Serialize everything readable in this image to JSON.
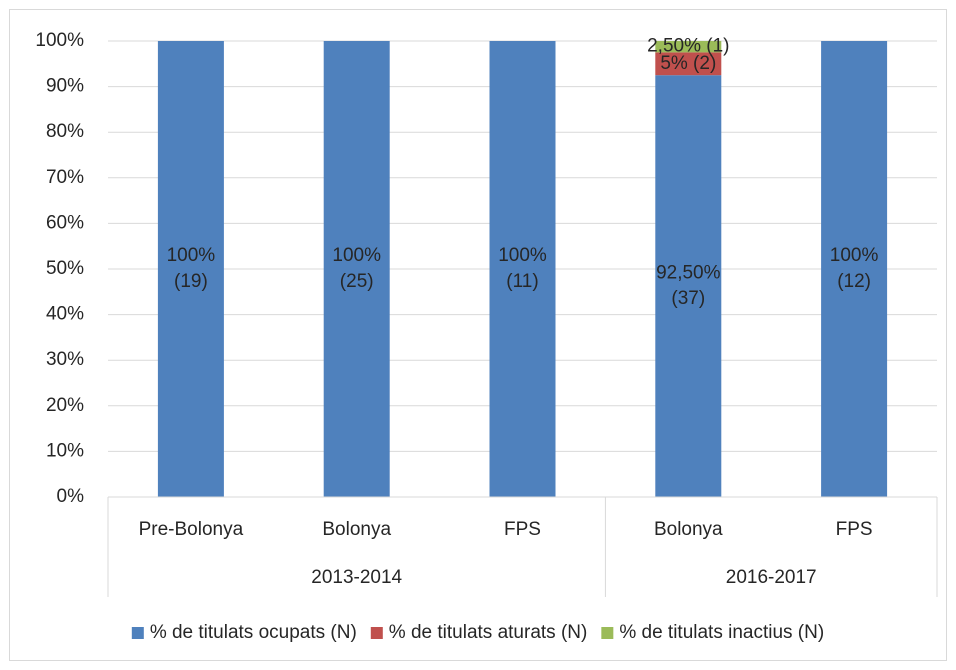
{
  "chart_data": {
    "type": "stacked_bar",
    "category_groups": [
      {
        "name": "2013-2014",
        "categories": [
          "Pre-Bolonya",
          "Bolonya",
          "FPS"
        ]
      },
      {
        "name": "2016-2017",
        "categories": [
          "Bolonya",
          "FPS"
        ]
      }
    ],
    "series": [
      {
        "name": "% de titulats ocupats (N)",
        "color": "#4f81bd",
        "values": [
          100,
          100,
          100,
          92.5,
          100
        ],
        "value_labels": [
          "100%\n(19)",
          "100%\n(25)",
          "100%\n(11)",
          "92,50%\n(37)",
          "100%\n(12)"
        ]
      },
      {
        "name": "% de titulats aturats (N)",
        "color": "#c0504d",
        "values": [
          0,
          0,
          0,
          5,
          0
        ],
        "value_labels": [
          null,
          null,
          null,
          "5% (2)",
          null
        ]
      },
      {
        "name": "% de titulats inactius (N)",
        "color": "#9bbb59",
        "values": [
          0,
          0,
          0,
          2.5,
          0
        ],
        "value_labels": [
          null,
          null,
          null,
          "2,50% (1)",
          null
        ]
      }
    ],
    "ylim": [
      0,
      100
    ],
    "yticks": [
      {
        "value": 0,
        "label": "0%"
      },
      {
        "value": 10,
        "label": "10%"
      },
      {
        "value": 20,
        "label": "20%"
      },
      {
        "value": 30,
        "label": "30%"
      },
      {
        "value": 40,
        "label": "40%"
      },
      {
        "value": 50,
        "label": "50%"
      },
      {
        "value": 60,
        "label": "60%"
      },
      {
        "value": 70,
        "label": "70%"
      },
      {
        "value": 80,
        "label": "80%"
      },
      {
        "value": 90,
        "label": "90%"
      },
      {
        "value": 100,
        "label": "100%"
      }
    ],
    "grid": true,
    "legend": "bottom"
  }
}
